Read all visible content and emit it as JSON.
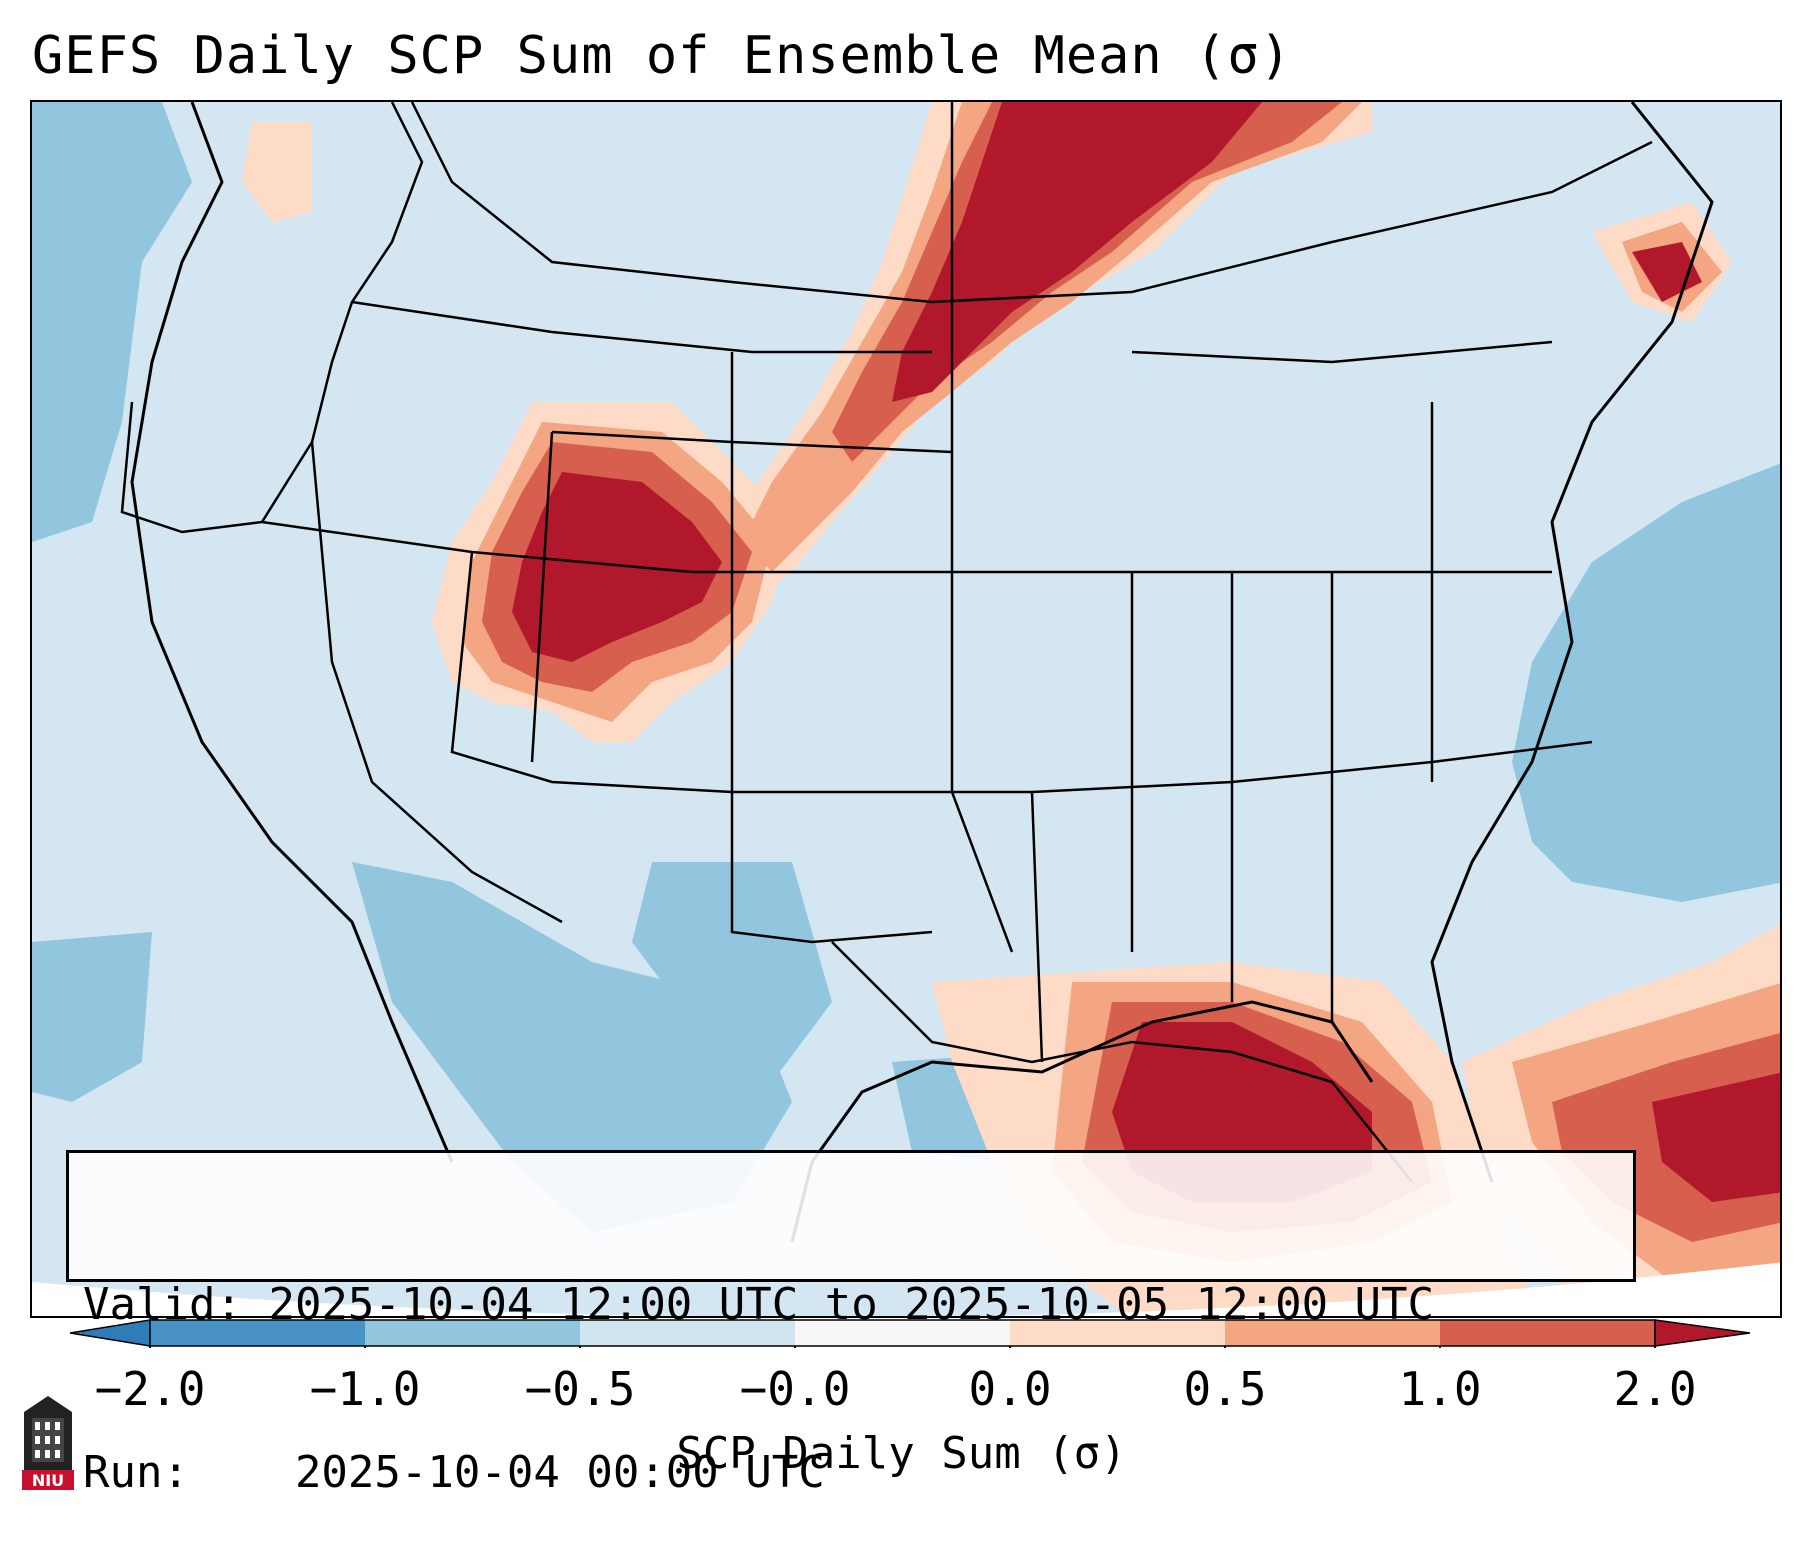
{
  "title": "GEFS Daily SCP Sum of Ensemble Mean (σ)",
  "info": {
    "valid_label": "Valid:",
    "valid_value": "2025-10-04 12:00 UTC to 2025-10-05 12:00 UTC",
    "run_label": "Run:",
    "run_value": "2025-10-04 00:00 UTC"
  },
  "colorbar": {
    "title": "SCP Daily Sum (σ)",
    "tick_labels": [
      "−2.0",
      "−1.0",
      "−0.5",
      "−0.0",
      "0.0",
      "0.5",
      "1.0",
      "2.0"
    ],
    "bins": [
      {
        "color": "#2f7cb8",
        "range": "< -2.0"
      },
      {
        "color": "#4a93c6",
        "range": "-2.0 to -1.0"
      },
      {
        "color": "#92c5de",
        "range": "-1.0 to -0.5"
      },
      {
        "color": "#d1e5f0",
        "range": "-0.5 to -0.0"
      },
      {
        "color": "#f7f7f7",
        "range": "-0.0 to 0.0"
      },
      {
        "color": "#fddbc7",
        "range": "0.0 to 0.5"
      },
      {
        "color": "#f4a582",
        "range": "0.5 to 1.0"
      },
      {
        "color": "#d6604d",
        "range": "1.0 to 2.0"
      },
      {
        "color": "#b2182b",
        "range": "> 2.0"
      }
    ]
  },
  "map": {
    "region": "Contiguous United States",
    "field": "SCP daily sum anomaly",
    "background_color": "#d3e6f1",
    "ocean_color": "#92c5de",
    "high_anomaly_areas": [
      "Northern Plains / Upper Midwest",
      "Colorado / Utah / Wyoming",
      "Gulf of Mexico / Florida",
      "Bahamas / Atlantic",
      "Northeast Canada"
    ]
  },
  "logo": {
    "text": "NIU",
    "icon": "niu-logo-icon",
    "color": "#c8102e"
  }
}
